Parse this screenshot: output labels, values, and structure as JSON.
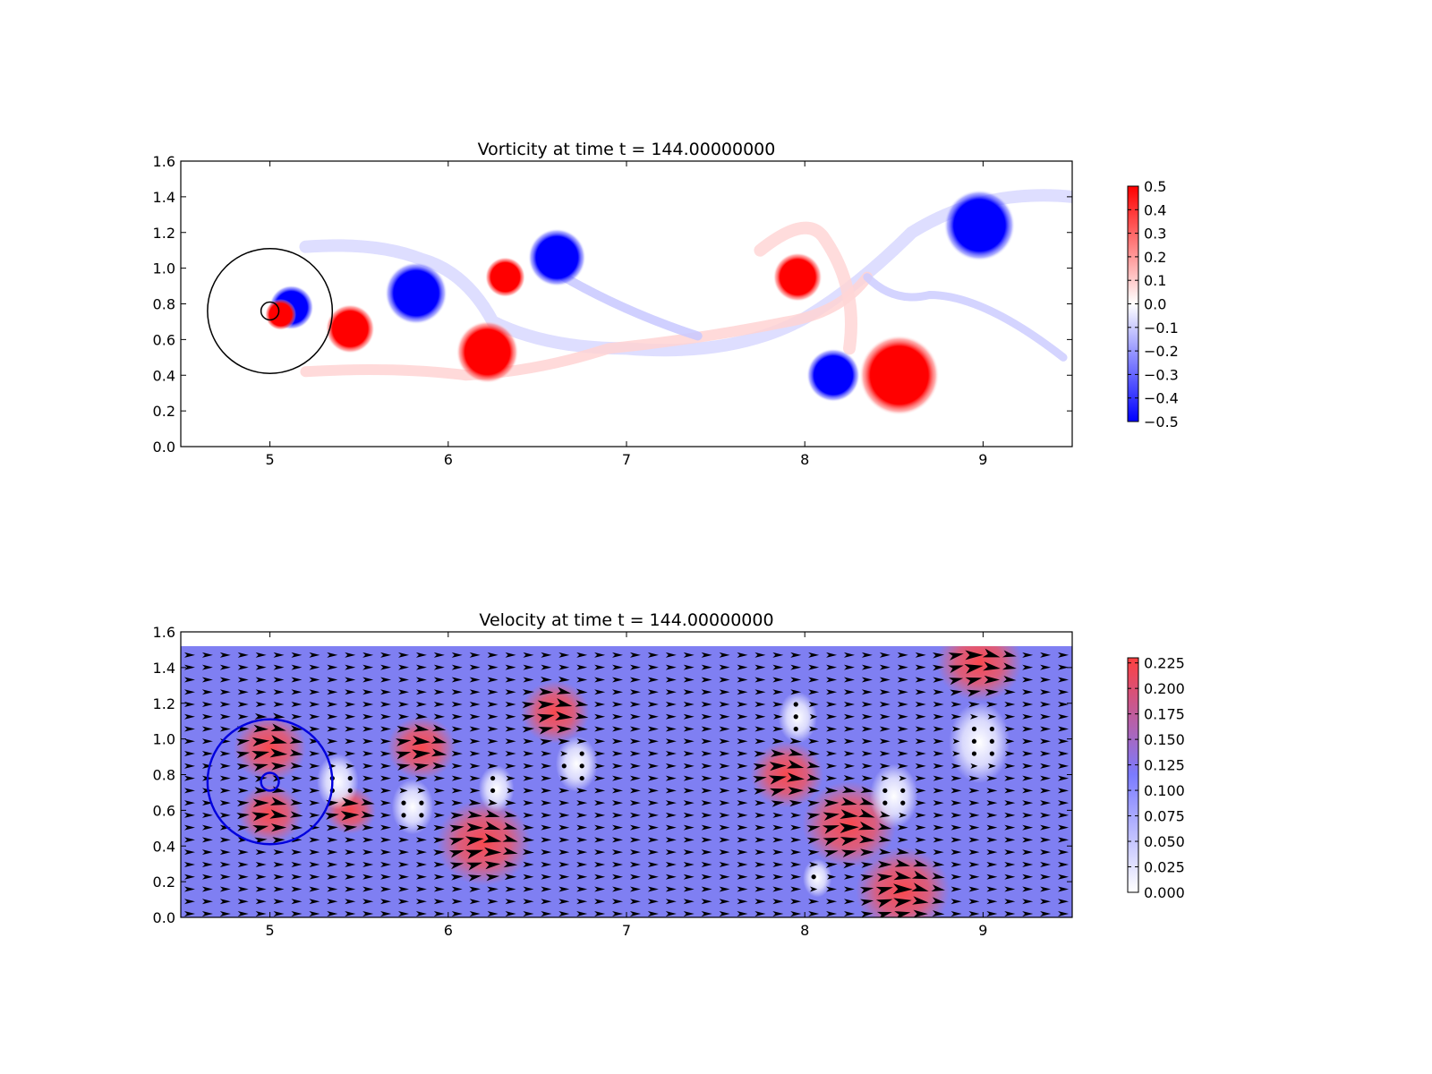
{
  "chart_data": [
    {
      "type": "heatmap",
      "title": "Vorticity at time t =   144.00000000",
      "xlim": [
        4.5,
        9.5
      ],
      "ylim": [
        0.0,
        1.6
      ],
      "xticks": [
        "5",
        "6",
        "7",
        "8",
        "9"
      ],
      "yticks": [
        "0.0",
        "0.2",
        "0.4",
        "0.6",
        "0.8",
        "1.0",
        "1.2",
        "1.4",
        "1.6"
      ],
      "colorbar": {
        "min": -0.5,
        "max": 0.5,
        "colors": [
          "#0000ff",
          "#ffffff",
          "#ff0000"
        ],
        "ticks": [
          "−0.5",
          "−0.4",
          "−0.3",
          "−0.2",
          "−0.1",
          "0.0",
          "0.1",
          "0.2",
          "0.3",
          "0.4",
          "0.5"
        ]
      },
      "vortices": [
        {
          "x": 5.12,
          "y": 0.78,
          "r": 0.1,
          "sign": "negative"
        },
        {
          "x": 5.06,
          "y": 0.74,
          "r": 0.07,
          "sign": "positive"
        },
        {
          "x": 5.45,
          "y": 0.66,
          "r": 0.11,
          "sign": "positive"
        },
        {
          "x": 5.82,
          "y": 0.86,
          "r": 0.14,
          "sign": "negative"
        },
        {
          "x": 6.22,
          "y": 0.53,
          "r": 0.14,
          "sign": "positive"
        },
        {
          "x": 6.32,
          "y": 0.95,
          "r": 0.09,
          "sign": "positive"
        },
        {
          "x": 6.61,
          "y": 1.06,
          "r": 0.13,
          "sign": "negative"
        },
        {
          "x": 7.96,
          "y": 0.95,
          "r": 0.11,
          "sign": "positive"
        },
        {
          "x": 8.16,
          "y": 0.4,
          "r": 0.12,
          "sign": "negative"
        },
        {
          "x": 8.53,
          "y": 0.4,
          "r": 0.18,
          "sign": "positive"
        },
        {
          "x": 8.98,
          "y": 1.24,
          "r": 0.16,
          "sign": "negative"
        }
      ],
      "circles": [
        {
          "x": 5.0,
          "y": 0.76,
          "r": 0.35,
          "color": "#000000"
        },
        {
          "x": 5.0,
          "y": 0.76,
          "r": 0.05,
          "color": "#000000"
        }
      ]
    },
    {
      "type": "heatmap",
      "title": "Velocity at time t =   144.00000000",
      "xlim": [
        4.5,
        9.5
      ],
      "ylim": [
        0.0,
        1.6
      ],
      "field_top": 1.52,
      "xticks": [
        "5",
        "6",
        "7",
        "8",
        "9"
      ],
      "yticks": [
        "0.0",
        "0.2",
        "0.4",
        "0.6",
        "0.8",
        "1.0",
        "1.2",
        "1.4",
        "1.6"
      ],
      "colorbar": {
        "min": 0.0,
        "max": 0.23,
        "colors": [
          "#ffffff",
          "#7b7bff",
          "#ff4040"
        ],
        "ticks": [
          "0.000",
          "0.025",
          "0.050",
          "0.075",
          "0.100",
          "0.125",
          "0.150",
          "0.175",
          "0.200",
          "0.225"
        ]
      },
      "background_speed": 0.095,
      "fast_regions": [
        {
          "x": 5.0,
          "y": 0.95,
          "r": 0.17
        },
        {
          "x": 5.0,
          "y": 0.58,
          "r": 0.15
        },
        {
          "x": 5.45,
          "y": 0.6,
          "r": 0.12
        },
        {
          "x": 5.85,
          "y": 0.95,
          "r": 0.16
        },
        {
          "x": 6.2,
          "y": 0.42,
          "r": 0.22
        },
        {
          "x": 6.6,
          "y": 1.15,
          "r": 0.16
        },
        {
          "x": 7.9,
          "y": 0.8,
          "r": 0.17
        },
        {
          "x": 8.25,
          "y": 0.52,
          "r": 0.22
        },
        {
          "x": 8.55,
          "y": 0.15,
          "r": 0.22
        },
        {
          "x": 8.98,
          "y": 1.43,
          "r": 0.2
        }
      ],
      "slow_regions": [
        {
          "x": 5.38,
          "y": 0.76,
          "r": 0.13
        },
        {
          "x": 5.8,
          "y": 0.62,
          "r": 0.13
        },
        {
          "x": 6.27,
          "y": 0.72,
          "r": 0.11
        },
        {
          "x": 6.72,
          "y": 0.86,
          "r": 0.13
        },
        {
          "x": 7.96,
          "y": 1.12,
          "r": 0.12
        },
        {
          "x": 8.07,
          "y": 0.22,
          "r": 0.09
        },
        {
          "x": 8.5,
          "y": 0.68,
          "r": 0.15
        },
        {
          "x": 8.98,
          "y": 0.98,
          "r": 0.19
        }
      ],
      "circles": [
        {
          "x": 5.0,
          "y": 0.76,
          "r": 0.35,
          "color": "#0000dd"
        },
        {
          "x": 5.0,
          "y": 0.76,
          "r": 0.05,
          "color": "#0000dd"
        }
      ]
    }
  ]
}
